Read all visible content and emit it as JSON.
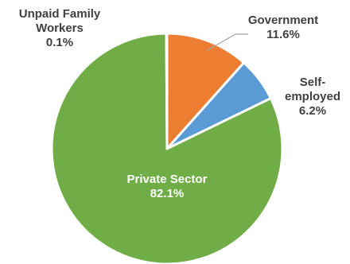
{
  "chart_data": {
    "type": "pie",
    "slices": [
      {
        "name": "Government",
        "value": 11.6,
        "label": "11.6%",
        "color": "#ed7d31",
        "label_color": "#404040"
      },
      {
        "name": "Self-employed",
        "value": 6.2,
        "label": "6.2%",
        "color": "#5b9bd5",
        "label_color": "#404040"
      },
      {
        "name": "Private Sector",
        "value": 82.1,
        "label": "82.1%",
        "color": "#70ad47",
        "label_color": "#ffffff"
      },
      {
        "name": "Unpaid Family Workers",
        "value": 0.1,
        "label": "0.1%",
        "color": "#a5a5a5",
        "label_color": "#404040"
      }
    ],
    "label_lines": {
      "Government": [
        "Government"
      ],
      "Self-employed": [
        "Self-",
        "employed"
      ],
      "Private Sector": [
        "Private Sector"
      ],
      "Unpaid Family Workers": [
        "Unpaid Family",
        "Workers"
      ]
    },
    "legend": "none",
    "start_angle": "12 o'clock",
    "direction": "clockwise"
  }
}
